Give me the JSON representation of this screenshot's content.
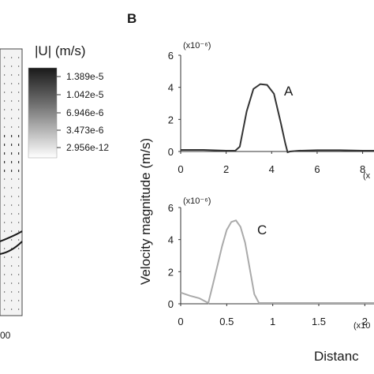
{
  "panel_label_b": "B",
  "colorbar": {
    "title": "|U| (m/s)",
    "ticks": [
      "1.389e-5",
      "1.042e-5",
      "6.946e-6",
      "3.473e-6",
      "2.956e-12"
    ],
    "gradient_top": "#1a1a1a",
    "gradient_bottom": "#ffffff"
  },
  "left_panel": {
    "tick_label": "00"
  },
  "shared_ylabel": "Velocity magnitude (m/s)",
  "shared_xlabel": "Distanc",
  "chart_data": [
    {
      "type": "line",
      "name": "A",
      "multiplier_label": "(x10⁻⁶)",
      "xlim": [
        0,
        8.5
      ],
      "ylim": [
        0,
        6
      ],
      "x_ticks": [
        "0",
        "2",
        "4",
        "6",
        "8"
      ],
      "y_ticks": [
        "0",
        "2",
        "4",
        "6"
      ],
      "x_multiplier_label": "(x",
      "color": "#333333",
      "x": [
        0,
        1,
        2,
        2.4,
        2.6,
        2.9,
        3.2,
        3.5,
        3.8,
        4.1,
        4.4,
        4.6,
        4.7,
        4.8,
        5.2,
        6,
        7,
        8,
        8.5
      ],
      "values": [
        0.1,
        0.1,
        0.05,
        0.05,
        0.3,
        2.5,
        3.9,
        4.2,
        4.15,
        3.6,
        1.8,
        0.5,
        -0.05,
        0,
        0.05,
        0.08,
        0.08,
        0.05,
        0.05
      ]
    },
    {
      "type": "line",
      "name": "C",
      "multiplier_label": "(x10⁻⁶)",
      "xlim": [
        0,
        2.1
      ],
      "ylim": [
        0,
        6
      ],
      "x_ticks": [
        "0",
        "0.5",
        "1",
        "1.5",
        "2"
      ],
      "y_ticks": [
        "0",
        "2",
        "4",
        "6"
      ],
      "x_multiplier_label": "(x10",
      "color": "#aaaaaa",
      "x": [
        0,
        0.1,
        0.2,
        0.3,
        0.35,
        0.4,
        0.45,
        0.5,
        0.55,
        0.6,
        0.65,
        0.7,
        0.75,
        0.8,
        0.85,
        1.0,
        2.0,
        2.1
      ],
      "values": [
        0.7,
        0.5,
        0.35,
        0.05,
        1.2,
        2.4,
        3.6,
        4.6,
        5.1,
        5.2,
        4.8,
        3.8,
        2.2,
        0.6,
        0.05,
        0.05,
        0.05,
        0.05
      ]
    }
  ]
}
